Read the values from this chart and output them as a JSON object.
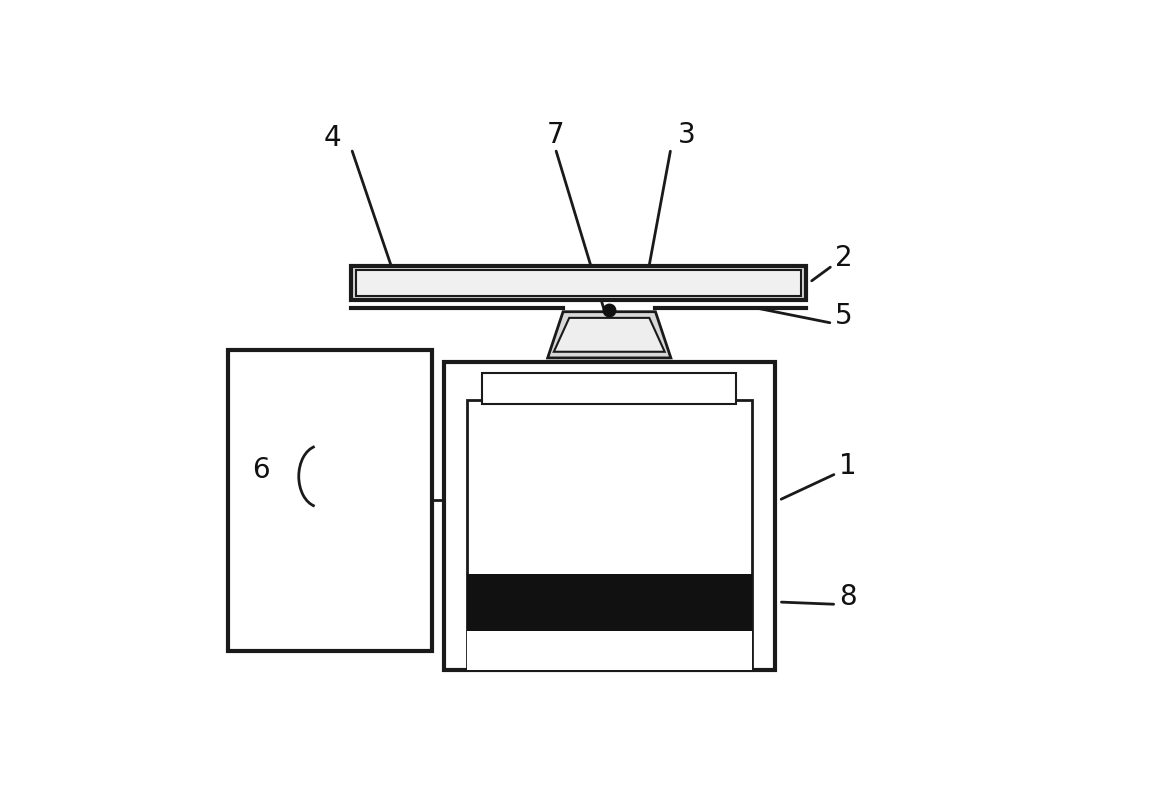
{
  "bg_color": "#ffffff",
  "line_color": "#1a1a1a",
  "dark_fill": "#111111",
  "light_fill": "#ffffff",
  "label_fontsize": 20,
  "figsize": [
    11.55,
    8.01
  ],
  "dpi": 100,
  "lw_thick": 3.0,
  "lw_main": 2.0,
  "lw_thin": 1.5
}
